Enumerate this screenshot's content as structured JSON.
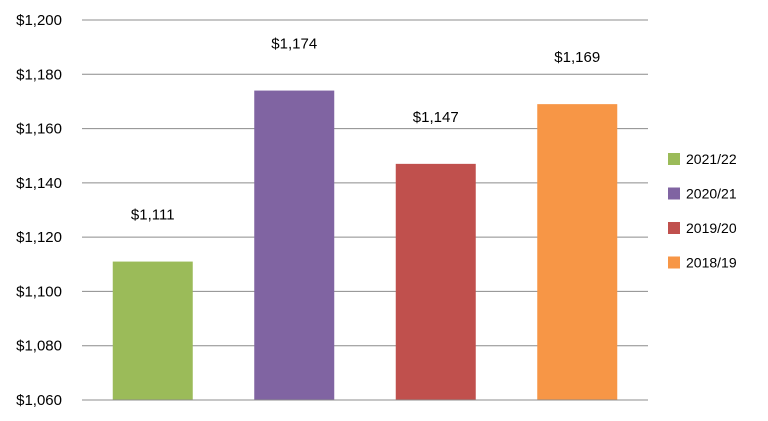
{
  "chart_data": {
    "type": "bar",
    "categories": [
      "2021/22",
      "2020/21",
      "2019/20",
      "2018/19"
    ],
    "values": [
      1111,
      1174,
      1147,
      1169
    ],
    "data_labels": [
      "$1,111",
      "$1,174",
      "$1,147",
      "$1,169"
    ],
    "colors": [
      "#9bbb59",
      "#8064a2",
      "#c0504d",
      "#f79646"
    ],
    "title": "",
    "xlabel": "",
    "ylabel": "",
    "ylim": [
      1060,
      1200
    ],
    "yticks": [
      1060,
      1080,
      1100,
      1120,
      1140,
      1160,
      1180,
      1200
    ],
    "ytick_labels": [
      "$1,060",
      "$1,080",
      "$1,100",
      "$1,120",
      "$1,140",
      "$1,160",
      "$1,180",
      "$1,200"
    ],
    "grid": true,
    "legend": {
      "position": "right",
      "entries": [
        "2021/22",
        "2020/21",
        "2019/20",
        "2018/19"
      ]
    }
  }
}
